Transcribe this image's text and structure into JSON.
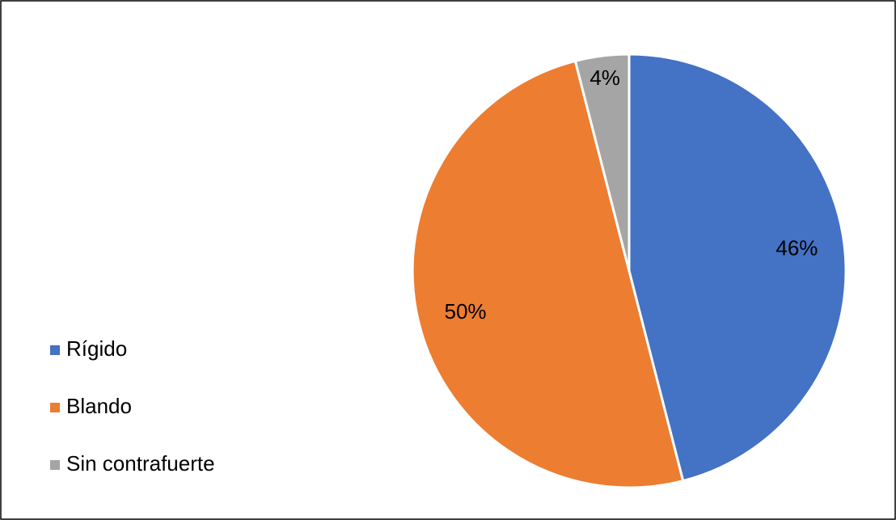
{
  "chart_data": {
    "type": "pie",
    "categories": [
      "Rígido",
      "Blando",
      "Sin contrafuerte"
    ],
    "values": [
      46,
      50,
      4
    ],
    "value_labels": [
      "46%",
      "50%",
      "4%"
    ],
    "colors": [
      "#4472c4",
      "#ed7d31",
      "#a5a5a5"
    ],
    "legend": "left"
  }
}
